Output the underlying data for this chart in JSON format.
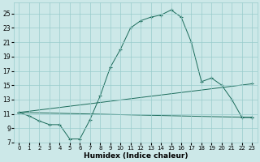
{
  "title": "",
  "xlabel": "Humidex (Indice chaleur)",
  "ylabel": "",
  "background_color": "#cce8e8",
  "grid_color": "#99cccc",
  "line_color": "#1a6b5a",
  "x_ticks": [
    0,
    1,
    2,
    3,
    4,
    5,
    6,
    7,
    8,
    9,
    10,
    11,
    12,
    13,
    14,
    15,
    16,
    17,
    18,
    19,
    20,
    21,
    22,
    23
  ],
  "y_ticks": [
    7,
    9,
    11,
    13,
    15,
    17,
    19,
    21,
    23,
    25
  ],
  "xlim": [
    -0.5,
    23.5
  ],
  "ylim": [
    7,
    26.5
  ],
  "series1_x": [
    0,
    1,
    2,
    3,
    4,
    5,
    6,
    7,
    8,
    9,
    10,
    11,
    12,
    13,
    14,
    15,
    16,
    17,
    18,
    19,
    20,
    21,
    22,
    23
  ],
  "series1_y": [
    11.2,
    10.7,
    10.0,
    9.5,
    9.5,
    7.5,
    7.5,
    10.2,
    13.5,
    17.5,
    20.0,
    23.0,
    24.0,
    24.5,
    24.8,
    25.5,
    24.5,
    21.0,
    15.5,
    16.0,
    15.0,
    13.0,
    10.5,
    10.5
  ],
  "series2_x": [
    0,
    23
  ],
  "series2_y": [
    11.2,
    15.2
  ],
  "series3_x": [
    0,
    23
  ],
  "series3_y": [
    11.2,
    10.5
  ]
}
